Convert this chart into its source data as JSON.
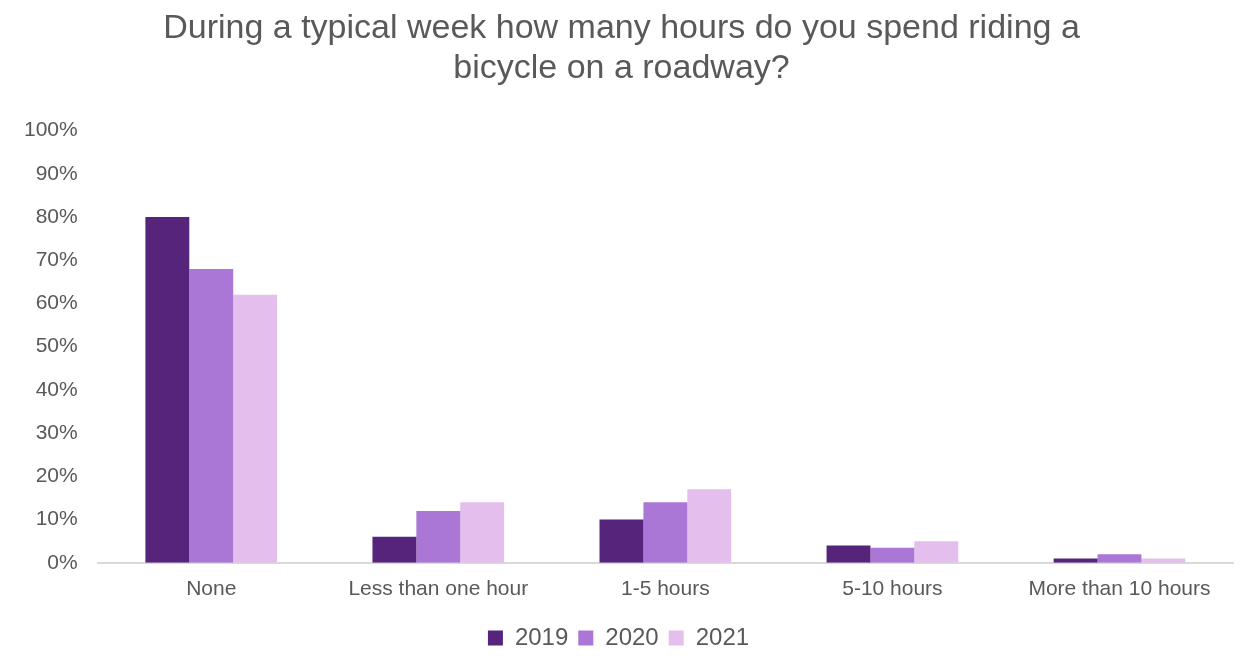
{
  "chart_data": {
    "type": "bar",
    "title": "During a typical week how many hours do you spend riding a bicycle on a roadway?",
    "categories": [
      "None",
      "Less than one hour",
      "1-5 hours",
      "5-10 hours",
      "More than 10 hours"
    ],
    "series": [
      {
        "name": "2019",
        "color": "#56247a",
        "values": [
          80,
          6,
          10,
          4,
          1
        ]
      },
      {
        "name": "2020",
        "color": "#ab77d6",
        "values": [
          68,
          12,
          14,
          3.5,
          2
        ]
      },
      {
        "name": "2021",
        "color": "#e4bfee",
        "values": [
          62,
          14,
          17,
          5,
          1
        ]
      }
    ],
    "ylim": [
      0,
      100
    ],
    "yticks": [
      {
        "value": 0,
        "label": "0%"
      },
      {
        "value": 10,
        "label": "10%"
      },
      {
        "value": 20,
        "label": "20%"
      },
      {
        "value": 30,
        "label": "30%"
      },
      {
        "value": 40,
        "label": "40%"
      },
      {
        "value": 50,
        "label": "50%"
      },
      {
        "value": 60,
        "label": "60%"
      },
      {
        "value": 70,
        "label": "70%"
      },
      {
        "value": 80,
        "label": "80%"
      },
      {
        "value": 90,
        "label": "90%"
      },
      {
        "value": 100,
        "label": "100%"
      }
    ],
    "grid": false,
    "legend": "bottom"
  }
}
